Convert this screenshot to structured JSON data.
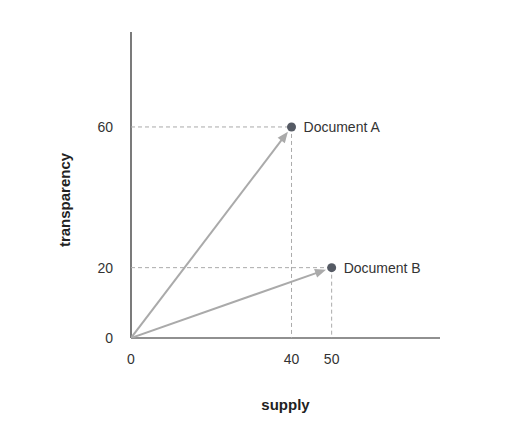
{
  "chart_data": {
    "type": "scatter",
    "x_label": "supply",
    "y_label": "transparency",
    "x": [
      40,
      50
    ],
    "values": [
      60,
      20
    ],
    "annotations": [
      "Document A",
      "Document B"
    ],
    "xlim": [
      0,
      77
    ],
    "ylim": [
      0,
      87
    ],
    "xticks": [
      0,
      40,
      50
    ],
    "yticks": [
      0,
      20,
      60
    ],
    "color": "#555a64",
    "marker": "circle",
    "line_style": "dashed",
    "grid": false
  }
}
